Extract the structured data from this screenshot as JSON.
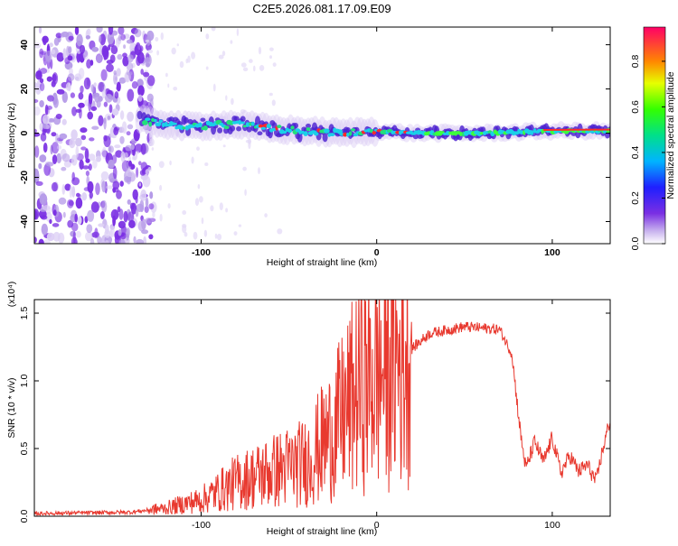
{
  "title": "C2E5.2026.081.17.09.E09",
  "chart_data": [
    {
      "type": "heatmap",
      "name": "spectrogram",
      "xlabel": "Height of straight line (km)",
      "ylabel": "Frequency (Hz)",
      "xlim": [
        -195,
        133
      ],
      "ylim": [
        -50,
        48
      ],
      "xticks": [
        -100,
        0,
        100
      ],
      "yticks": [
        -40,
        -20,
        0,
        20,
        40
      ],
      "noise_region_end_km": -135,
      "signal_track": [
        {
          "x": -135,
          "y": 6
        },
        {
          "x": -110,
          "y": 3
        },
        {
          "x": -80,
          "y": 4
        },
        {
          "x": -60,
          "y": 2
        },
        {
          "x": -40,
          "y": 1
        },
        {
          "x": -20,
          "y": 0
        },
        {
          "x": 0,
          "y": 1
        },
        {
          "x": 20,
          "y": 0
        },
        {
          "x": 60,
          "y": 0
        },
        {
          "x": 100,
          "y": 1
        },
        {
          "x": 133,
          "y": 1
        }
      ]
    },
    {
      "type": "colorbar",
      "label": "Normalized spectral amplitude",
      "range": [
        0,
        0.95
      ],
      "ticks": [
        0.0,
        0.2,
        0.4,
        0.6,
        0.8
      ],
      "tick_labels": [
        "0.0",
        "0.2",
        "0.4",
        "0.6",
        "0.8"
      ]
    },
    {
      "type": "line",
      "name": "snr",
      "xlabel": "Height of straight line (km)",
      "ylabel": "SNR (10 * v/v)",
      "multiplier_label": "(x10⁴)",
      "xlim": [
        -195,
        133
      ],
      "ylim": [
        0,
        1.6
      ],
      "xticks": [
        -100,
        0,
        100
      ],
      "yticks": [
        0.0,
        0.5,
        1.0,
        1.5
      ],
      "ytick_labels": [
        "0.0",
        "0.5",
        "1.0",
        "1.5"
      ],
      "color": "#e8392f",
      "series": [
        {
          "x": -195,
          "y": 0.02
        },
        {
          "x": -140,
          "y": 0.03
        },
        {
          "x": -120,
          "y": 0.06
        },
        {
          "x": -100,
          "y": 0.12
        },
        {
          "x": -80,
          "y": 0.25
        },
        {
          "x": -60,
          "y": 0.33
        },
        {
          "x": -40,
          "y": 0.4
        },
        {
          "x": -25,
          "y": 0.62
        },
        {
          "x": -10,
          "y": 0.95
        },
        {
          "x": 0,
          "y": 1.05
        },
        {
          "x": 15,
          "y": 1.18
        },
        {
          "x": 30,
          "y": 1.35
        },
        {
          "x": 50,
          "y": 1.4
        },
        {
          "x": 70,
          "y": 1.38
        },
        {
          "x": 77,
          "y": 1.2
        },
        {
          "x": 82,
          "y": 0.6
        },
        {
          "x": 85,
          "y": 0.35
        },
        {
          "x": 90,
          "y": 0.55
        },
        {
          "x": 95,
          "y": 0.4
        },
        {
          "x": 100,
          "y": 0.58
        },
        {
          "x": 105,
          "y": 0.32
        },
        {
          "x": 110,
          "y": 0.45
        },
        {
          "x": 115,
          "y": 0.33
        },
        {
          "x": 120,
          "y": 0.38
        },
        {
          "x": 125,
          "y": 0.25
        },
        {
          "x": 128,
          "y": 0.45
        },
        {
          "x": 133,
          "y": 0.72
        }
      ]
    }
  ]
}
